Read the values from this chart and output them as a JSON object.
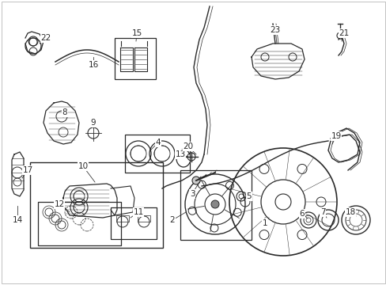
{
  "bg_color": "#ffffff",
  "line_color": "#2a2a2a",
  "fig_w": 4.89,
  "fig_h": 3.6,
  "dpi": 100,
  "border_color": "#cccccc"
}
